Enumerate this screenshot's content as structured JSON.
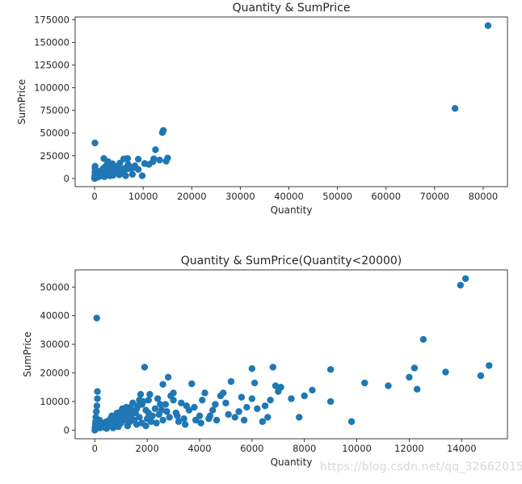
{
  "colors": {
    "marker": "#1f77b4",
    "axis": "#262626",
    "watermark": "#d7d7d7"
  },
  "chart_data": [
    {
      "type": "scatter",
      "title": "Quantity & SumPrice",
      "xlabel": "Quantity",
      "ylabel": "SumPrice",
      "xlim": [
        -4000,
        85000
      ],
      "ylim": [
        -9000,
        178000
      ],
      "xticks": [
        0,
        10000,
        20000,
        30000,
        40000,
        50000,
        60000,
        70000,
        80000
      ],
      "xtick_labels": [
        "0",
        "10000",
        "20000",
        "30000",
        "40000",
        "50000",
        "60000",
        "70000",
        "80000"
      ],
      "yticks": [
        0,
        25000,
        50000,
        75000,
        100000,
        125000,
        150000,
        175000
      ],
      "ytick_labels": [
        "0",
        "25000",
        "50000",
        "75000",
        "100000",
        "125000",
        "150000",
        "175000"
      ],
      "points": [
        [
          80995,
          168470
        ],
        [
          74215,
          77184
        ],
        [
          14149,
          52940
        ],
        [
          13956,
          50653
        ],
        [
          74,
          39164
        ],
        [
          12540,
          31698
        ],
        [
          13390,
          20289
        ],
        [
          14730,
          19018
        ],
        [
          15049,
          22575
        ],
        [
          12200,
          21708
        ],
        [
          12000,
          18500
        ],
        [
          11200,
          15500
        ],
        [
          10300,
          16500
        ],
        [
          9800,
          3000
        ],
        [
          9000,
          10000
        ],
        [
          9000,
          21200
        ],
        [
          8300,
          14000
        ],
        [
          8000,
          12000
        ],
        [
          7800,
          4500
        ],
        [
          7500,
          11000
        ],
        [
          7000,
          13500
        ],
        [
          6900,
          15500
        ],
        [
          6800,
          22000
        ],
        [
          6700,
          10500
        ],
        [
          6400,
          3000
        ],
        [
          6000,
          21500
        ],
        [
          6000,
          11000
        ],
        [
          5800,
          8000
        ],
        [
          5500,
          6500
        ],
        [
          5200,
          17000
        ],
        [
          5000,
          9500
        ],
        [
          4800,
          12000
        ],
        [
          4500,
          7000
        ],
        [
          4200,
          13000
        ],
        [
          4000,
          5000
        ],
        [
          3700,
          16200
        ],
        [
          3500,
          8500
        ],
        [
          3200,
          3000
        ],
        [
          2800,
          18500
        ],
        [
          2600,
          16000
        ],
        [
          2500,
          9000
        ],
        [
          2300,
          7500
        ],
        [
          2100,
          12500
        ],
        [
          2000,
          4000
        ],
        [
          1900,
          22000
        ],
        [
          1700,
          10500
        ],
        [
          1500,
          6500
        ],
        [
          1200,
          8000
        ],
        [
          900,
          5000
        ],
        [
          700,
          3500
        ],
        [
          500,
          2000
        ],
        [
          300,
          1200
        ],
        [
          100,
          13500
        ],
        [
          100,
          11000
        ],
        [
          50,
          500
        ],
        [
          3000,
          6000
        ],
        [
          2700,
          5000
        ],
        [
          2200,
          3000
        ],
        [
          1800,
          4500
        ],
        [
          1400,
          3500
        ],
        [
          1100,
          2500
        ],
        [
          800,
          2000
        ],
        [
          600,
          1500
        ],
        [
          400,
          1000
        ],
        [
          200,
          700
        ],
        [
          0,
          0
        ],
        [
          3400,
          11000
        ],
        [
          2900,
          9500
        ],
        [
          2400,
          10500
        ],
        [
          1600,
          9000
        ],
        [
          4400,
          10500
        ],
        [
          4700,
          8000
        ],
        [
          5100,
          4000
        ],
        [
          5700,
          10000
        ],
        [
          6200,
          9000
        ],
        [
          3800,
          3500
        ],
        [
          3100,
          7000
        ],
        [
          2050,
          2000
        ],
        [
          1300,
          5500
        ],
        [
          1000,
          6500
        ],
        [
          500,
          4500
        ],
        [
          250,
          3000
        ],
        [
          150,
          5000
        ],
        [
          75,
          7000
        ],
        [
          20,
          2500
        ]
      ]
    },
    {
      "type": "scatter",
      "title": "Quantity & SumPrice(Quantity<20000)",
      "xlabel": "Quantity",
      "ylabel": "SumPrice",
      "xlim": [
        -750,
        15750
      ],
      "ylim": [
        -3000,
        56000
      ],
      "xticks": [
        0,
        2000,
        4000,
        6000,
        8000,
        10000,
        12000,
        14000
      ],
      "xtick_labels": [
        "0",
        "2000",
        "4000",
        "6000",
        "8000",
        "10000",
        "12000",
        "14000"
      ],
      "yticks": [
        0,
        10000,
        20000,
        30000,
        40000,
        50000
      ],
      "ytick_labels": [
        "0",
        "10000",
        "20000",
        "30000",
        "40000",
        "50000"
      ],
      "points": [
        [
          14149,
          52940
        ],
        [
          13956,
          50653
        ],
        [
          74,
          39164
        ],
        [
          12540,
          31698
        ],
        [
          15049,
          22575
        ],
        [
          13390,
          20289
        ],
        [
          14730,
          19018
        ],
        [
          12200,
          21708
        ],
        [
          12000,
          18500
        ],
        [
          12300,
          14300
        ],
        [
          11200,
          15500
        ],
        [
          10300,
          16500
        ],
        [
          9800,
          3000
        ],
        [
          9000,
          10000
        ],
        [
          9000,
          21200
        ],
        [
          8300,
          14000
        ],
        [
          8000,
          12000
        ],
        [
          7800,
          4500
        ],
        [
          7500,
          11000
        ],
        [
          7100,
          15000
        ],
        [
          7000,
          13500
        ],
        [
          6900,
          15500
        ],
        [
          6800,
          22000
        ],
        [
          6700,
          10500
        ],
        [
          6400,
          3000
        ],
        [
          6500,
          8500
        ],
        [
          6000,
          21500
        ],
        [
          6000,
          11000
        ],
        [
          6100,
          16500
        ],
        [
          5800,
          8000
        ],
        [
          5500,
          6500
        ],
        [
          5600,
          11500
        ],
        [
          5200,
          17000
        ],
        [
          5000,
          9500
        ],
        [
          4900,
          13000
        ],
        [
          4800,
          12000
        ],
        [
          4600,
          9000
        ],
        [
          4500,
          7000
        ],
        [
          4400,
          5000
        ],
        [
          4200,
          13000
        ],
        [
          4100,
          10500
        ],
        [
          4000,
          5000
        ],
        [
          3800,
          8000
        ],
        [
          3700,
          16200
        ],
        [
          3600,
          7000
        ],
        [
          3500,
          8500
        ],
        [
          3400,
          4000
        ],
        [
          3300,
          9500
        ],
        [
          3200,
          3000
        ],
        [
          3100,
          6000
        ],
        [
          3000,
          10500
        ],
        [
          3000,
          13000
        ],
        [
          2900,
          12000
        ],
        [
          2800,
          18500
        ],
        [
          2700,
          9000
        ],
        [
          2600,
          16000
        ],
        [
          2500,
          9000
        ],
        [
          2400,
          11000
        ],
        [
          2300,
          7500
        ],
        [
          2200,
          5000
        ],
        [
          2100,
          12500
        ],
        [
          2050,
          10500
        ],
        [
          2000,
          4000
        ],
        [
          1950,
          7000
        ],
        [
          1900,
          22000
        ],
        [
          1850,
          10000
        ],
        [
          1800,
          9000
        ],
        [
          1750,
          12500
        ],
        [
          1700,
          10500
        ],
        [
          1650,
          8500
        ],
        [
          1600,
          7500
        ],
        [
          1550,
          6000
        ],
        [
          1500,
          6500
        ],
        [
          1450,
          9500
        ],
        [
          1400,
          5500
        ],
        [
          1350,
          8000
        ],
        [
          1300,
          4500
        ],
        [
          1250,
          7000
        ],
        [
          1200,
          8000
        ],
        [
          1150,
          6000
        ],
        [
          1100,
          5000
        ],
        [
          1050,
          7500
        ],
        [
          1000,
          6500
        ],
        [
          950,
          4000
        ],
        [
          900,
          5000
        ],
        [
          850,
          6000
        ],
        [
          800,
          3000
        ],
        [
          750,
          4500
        ],
        [
          700,
          3500
        ],
        [
          650,
          5000
        ],
        [
          600,
          2500
        ],
        [
          550,
          3500
        ],
        [
          500,
          2000
        ],
        [
          450,
          3000
        ],
        [
          400,
          1500
        ],
        [
          350,
          2500
        ],
        [
          300,
          1200
        ],
        [
          250,
          2000
        ],
        [
          200,
          800
        ],
        [
          150,
          1500
        ],
        [
          100,
          13500
        ],
        [
          100,
          11000
        ],
        [
          80,
          8500
        ],
        [
          60,
          6500
        ],
        [
          50,
          500
        ],
        [
          40,
          4500
        ],
        [
          30,
          3000
        ],
        [
          20,
          2000
        ],
        [
          10,
          1000
        ],
        [
          0,
          0
        ],
        [
          2600,
          3500
        ],
        [
          2350,
          2500
        ],
        [
          1950,
          1500
        ],
        [
          1600,
          2000
        ],
        [
          1250,
          1500
        ],
        [
          900,
          1200
        ],
        [
          700,
          800
        ],
        [
          450,
          600
        ],
        [
          2750,
          6500
        ],
        [
          3150,
          5000
        ],
        [
          3450,
          2000
        ],
        [
          3850,
          3500
        ],
        [
          4050,
          2500
        ],
        [
          4350,
          4000
        ],
        [
          4650,
          3500
        ],
        [
          5100,
          5500
        ],
        [
          5350,
          4500
        ],
        [
          5700,
          3500
        ],
        [
          6200,
          7500
        ],
        [
          6600,
          4500
        ],
        [
          1500,
          3500
        ],
        [
          1700,
          4500
        ],
        [
          1800,
          2500
        ],
        [
          2050,
          6000
        ],
        [
          2150,
          3000
        ],
        [
          2450,
          5500
        ],
        [
          2550,
          7000
        ],
        [
          2850,
          4500
        ],
        [
          1350,
          3000
        ],
        [
          1150,
          3500
        ],
        [
          1000,
          2500
        ],
        [
          850,
          2000
        ],
        [
          600,
          4000
        ],
        [
          350,
          1000
        ],
        [
          180,
          3500
        ]
      ]
    }
  ],
  "watermark": "https://blog.csdn.net/qq_32662015"
}
